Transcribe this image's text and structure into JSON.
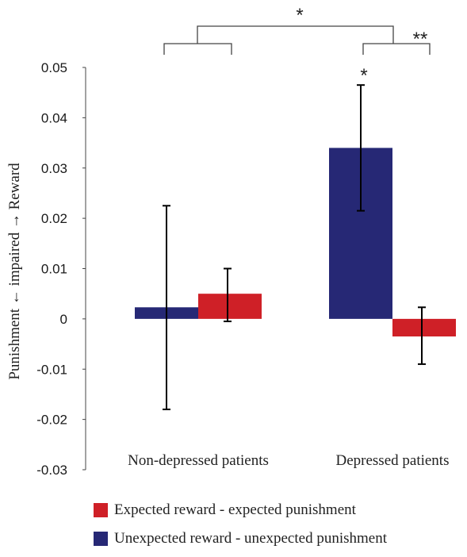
{
  "chart_data": {
    "type": "bar",
    "categories": [
      "Non-depressed patients",
      "Depressed patients"
    ],
    "series": [
      {
        "name": "Unexpected reward - unexpected punishment",
        "color": "#262875",
        "values": [
          0.0023,
          0.034
        ],
        "error_low": [
          -0.018,
          0.0215
        ],
        "error_high": [
          0.0225,
          0.0465
        ]
      },
      {
        "name": "Expected reward - expected punishment",
        "color": "#cf2027",
        "values": [
          0.005,
          -0.0035
        ],
        "error_low": [
          -0.0005,
          -0.009
        ],
        "error_high": [
          0.01,
          0.0023
        ]
      }
    ],
    "ylim": [
      -0.03,
      0.05
    ],
    "yticks": [
      "0.05",
      "0.04",
      "0.03",
      "0.02",
      "0.01",
      "0",
      "-0.01",
      "-0.02",
      "-0.03"
    ],
    "ytick_values": [
      0.05,
      0.04,
      0.03,
      0.02,
      0.01,
      0,
      -0.01,
      -0.02,
      -0.03
    ],
    "ylabel_left": "Punishment",
    "ylabel_middle": "← impaired →",
    "ylabel_right": "Reward",
    "significance": {
      "between_groups": "*",
      "within_depressed": "**",
      "depressed_vs_zero": "*"
    },
    "legend_order": [
      1,
      0
    ]
  }
}
